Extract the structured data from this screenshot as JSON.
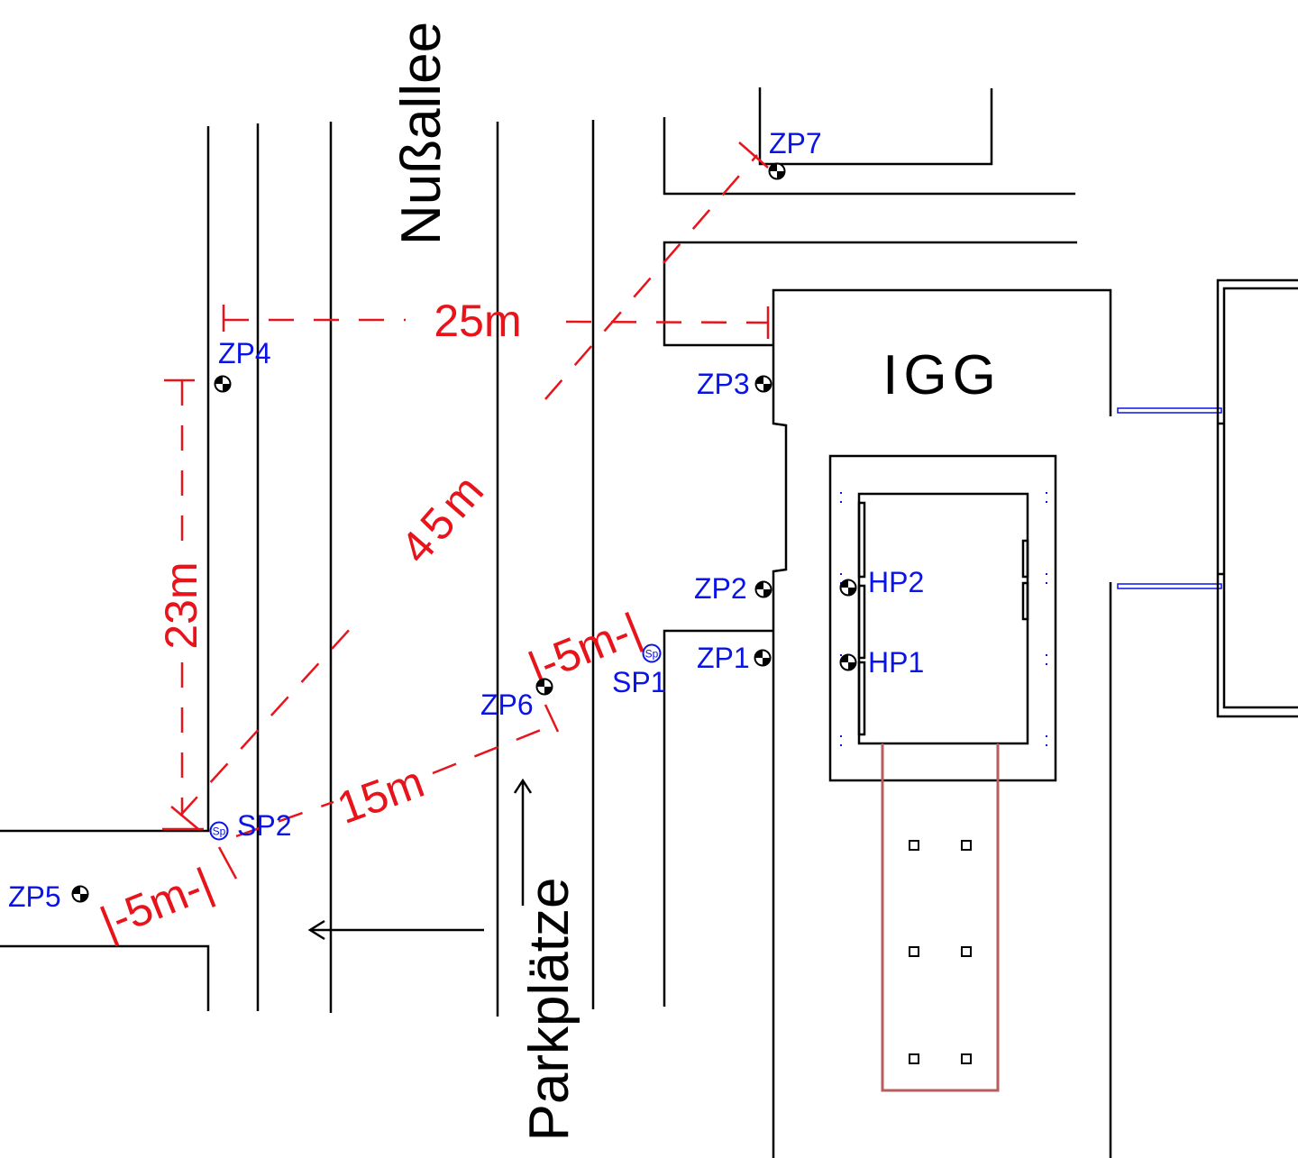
{
  "street_labels": {
    "street": "Nußallee",
    "parking": "Parkplätze",
    "building": "IGG"
  },
  "points": {
    "ZP1": "ZP1",
    "ZP2": "ZP2",
    "ZP3": "ZP3",
    "ZP4": "ZP4",
    "ZP5": "ZP5",
    "ZP6": "ZP6",
    "ZP7": "ZP7",
    "HP1": "HP1",
    "HP2": "HP2",
    "SP1": "SP1",
    "SP2": "SP2"
  },
  "dimensions": {
    "d25": "25m",
    "d45": "45m",
    "d23": "23m",
    "d15": "15m",
    "d5a": "|-5m-|",
    "d5b": "|-5m-|"
  },
  "symbol_text": "Sp",
  "colors": {
    "points": "#0a14e6",
    "dimensions": "#e8141c",
    "lines": "#000000",
    "ramp": "#b85c5c"
  }
}
